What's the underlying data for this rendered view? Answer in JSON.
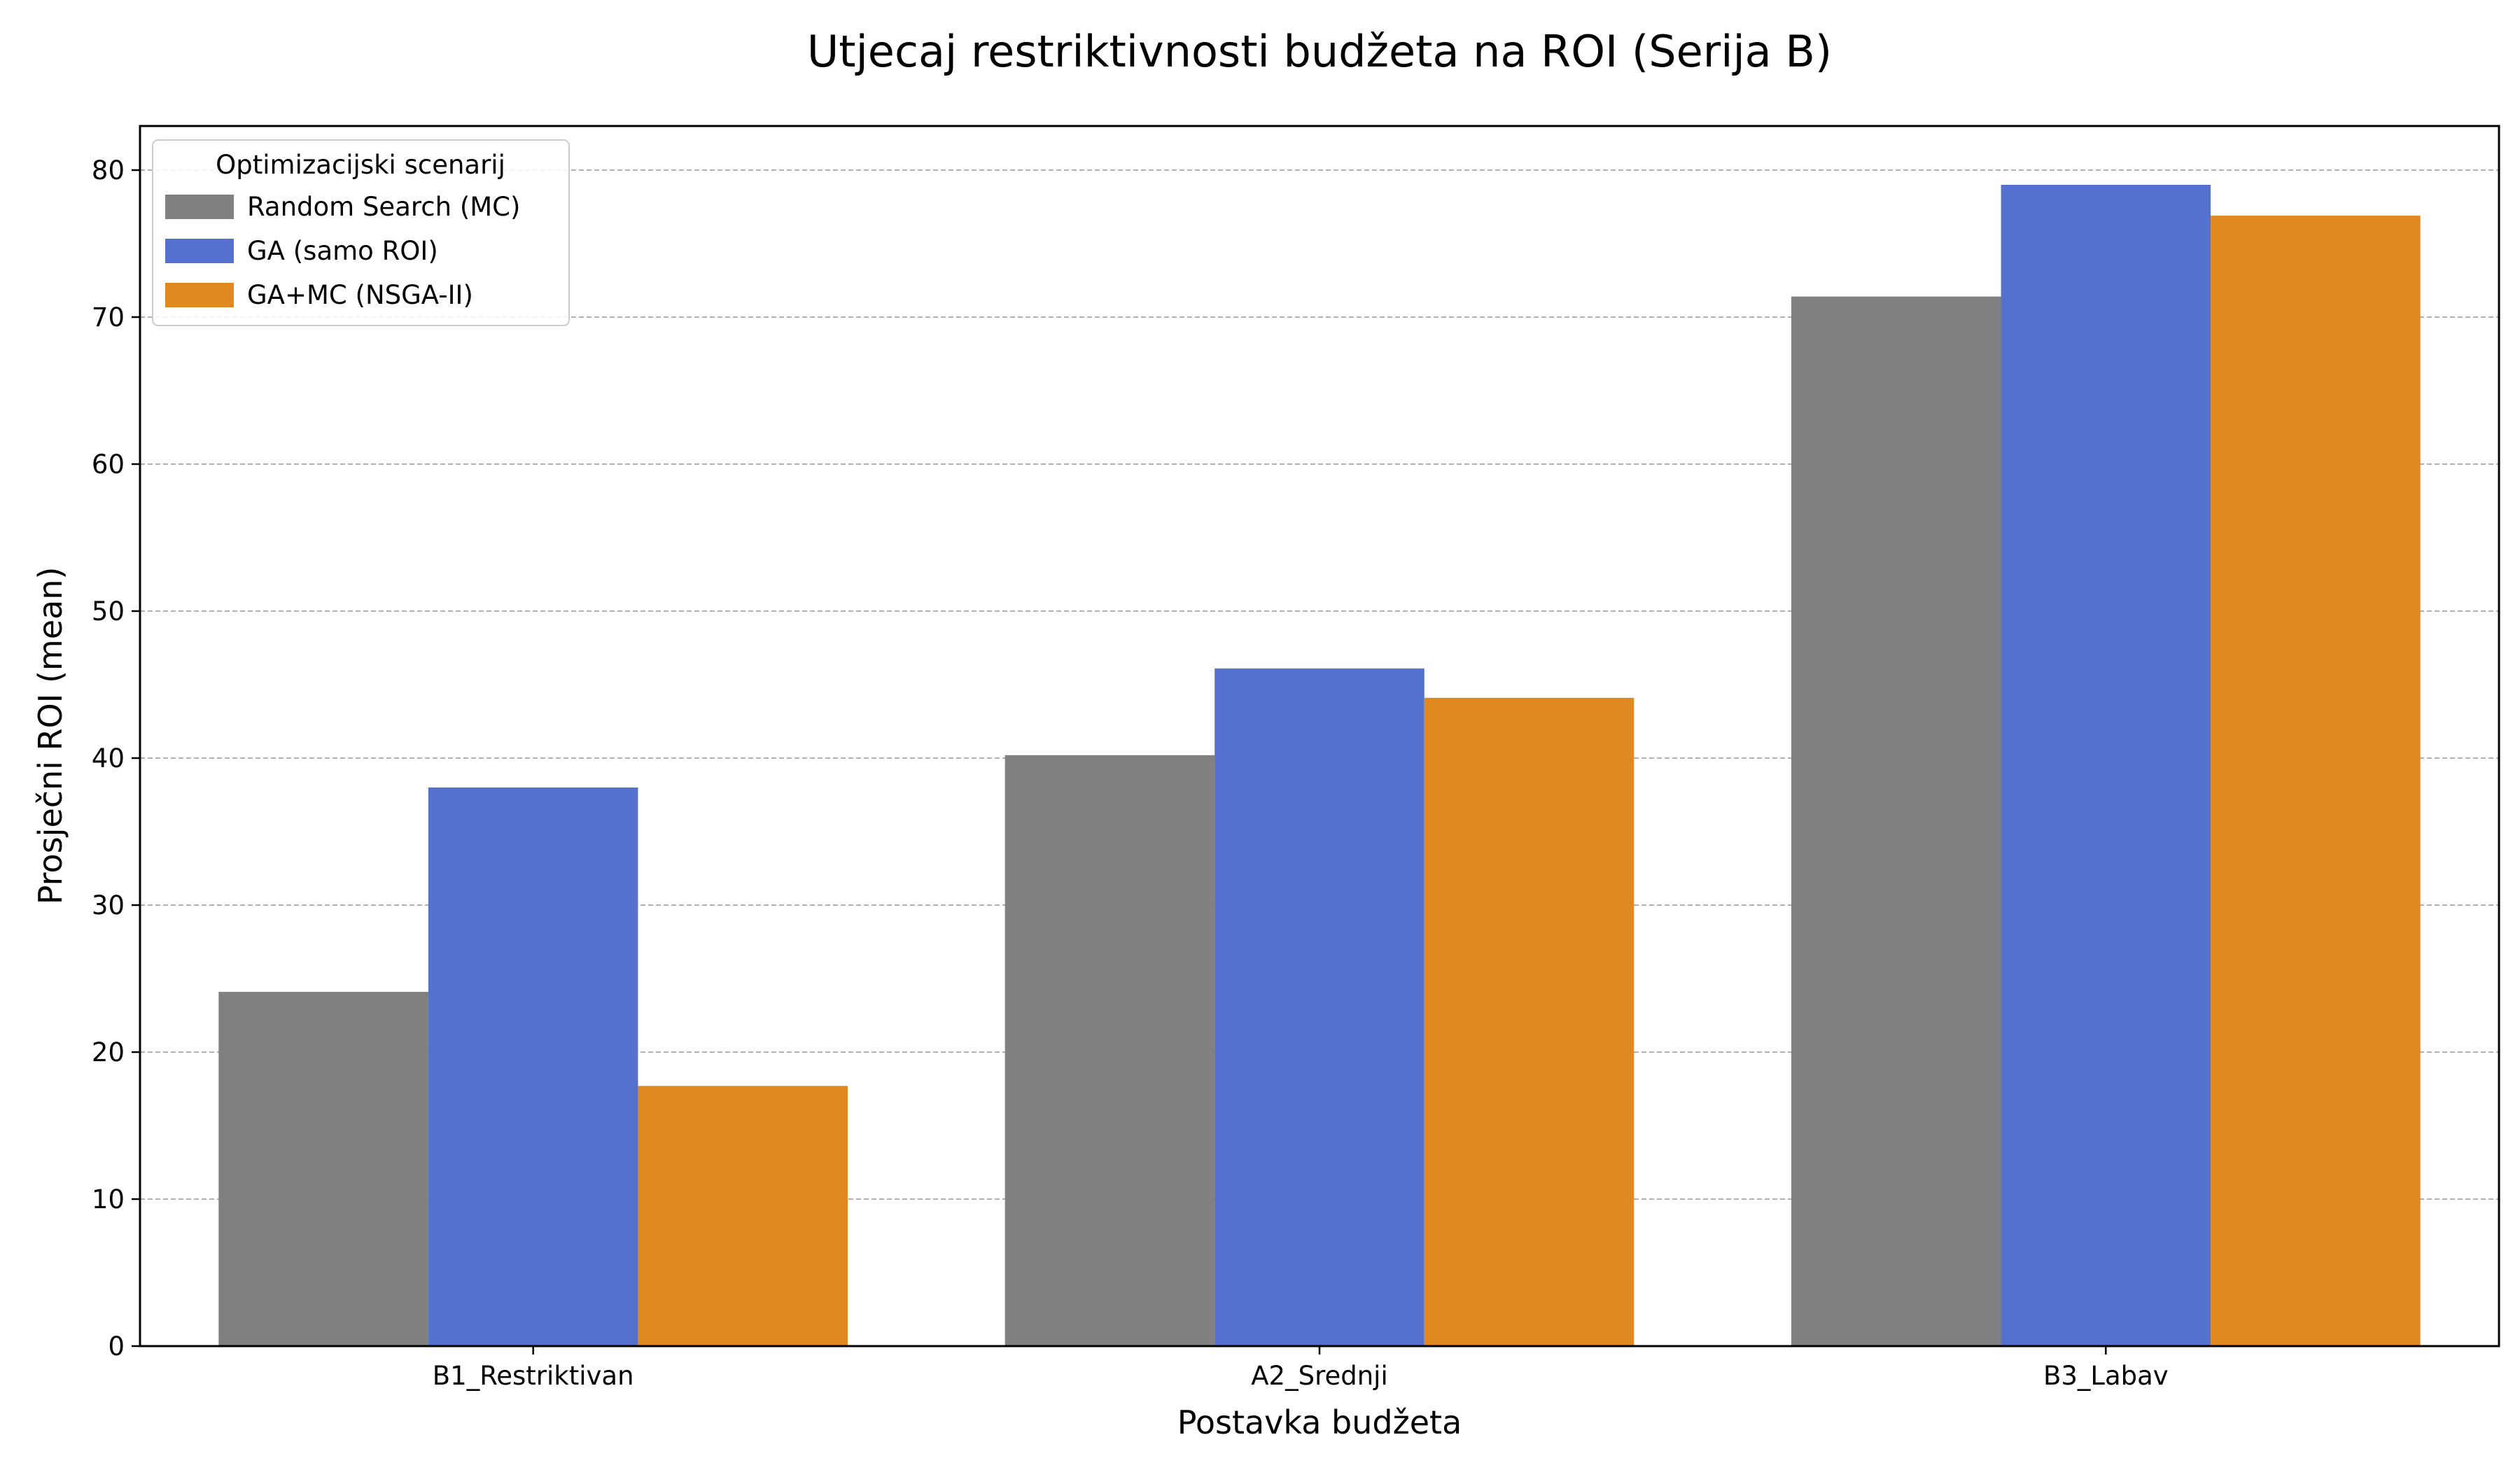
{
  "chart_data": {
    "type": "bar",
    "title": "Utjecaj restriktivnosti budžeta na ROI (Serija B)",
    "xlabel": "Postavka budžeta",
    "ylabel": "Prosječni ROI (mean)",
    "categories": [
      "B1_Restriktivan",
      "A2_Srednji",
      "B3_Labav"
    ],
    "series": [
      {
        "name": "Random Search (MC)",
        "color": "#808080",
        "values": [
          24.1,
          40.2,
          71.4
        ]
      },
      {
        "name": "GA (samo ROI)",
        "color": "#5472cd",
        "values": [
          38.0,
          46.1,
          79.0
        ]
      },
      {
        "name": "GA+MC (NSGA-II)",
        "color": "#e08921",
        "values": [
          17.7,
          44.1,
          76.9
        ]
      }
    ],
    "ylim": [
      0,
      83
    ],
    "yticks": [
      0,
      10,
      20,
      30,
      40,
      50,
      60,
      70,
      80
    ],
    "grid": "y, dashed",
    "legend": {
      "title": "Optimizacijski scenarij",
      "position": "top-left"
    }
  }
}
